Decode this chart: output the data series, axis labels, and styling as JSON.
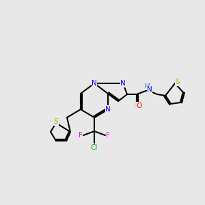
{
  "background_color": "#e8e8e8",
  "bond_color": "#000000",
  "bond_lw": 1.5,
  "atom_colors": {
    "S": "#b8b000",
    "N": "#0000ff",
    "O": "#ff0000",
    "F": "#ff00ff",
    "Cl": "#00bb00",
    "H": "#008888",
    "C": "#000000"
  },
  "font_size": 7.5,
  "fig_size": [
    3.0,
    3.0
  ],
  "dpi": 100
}
